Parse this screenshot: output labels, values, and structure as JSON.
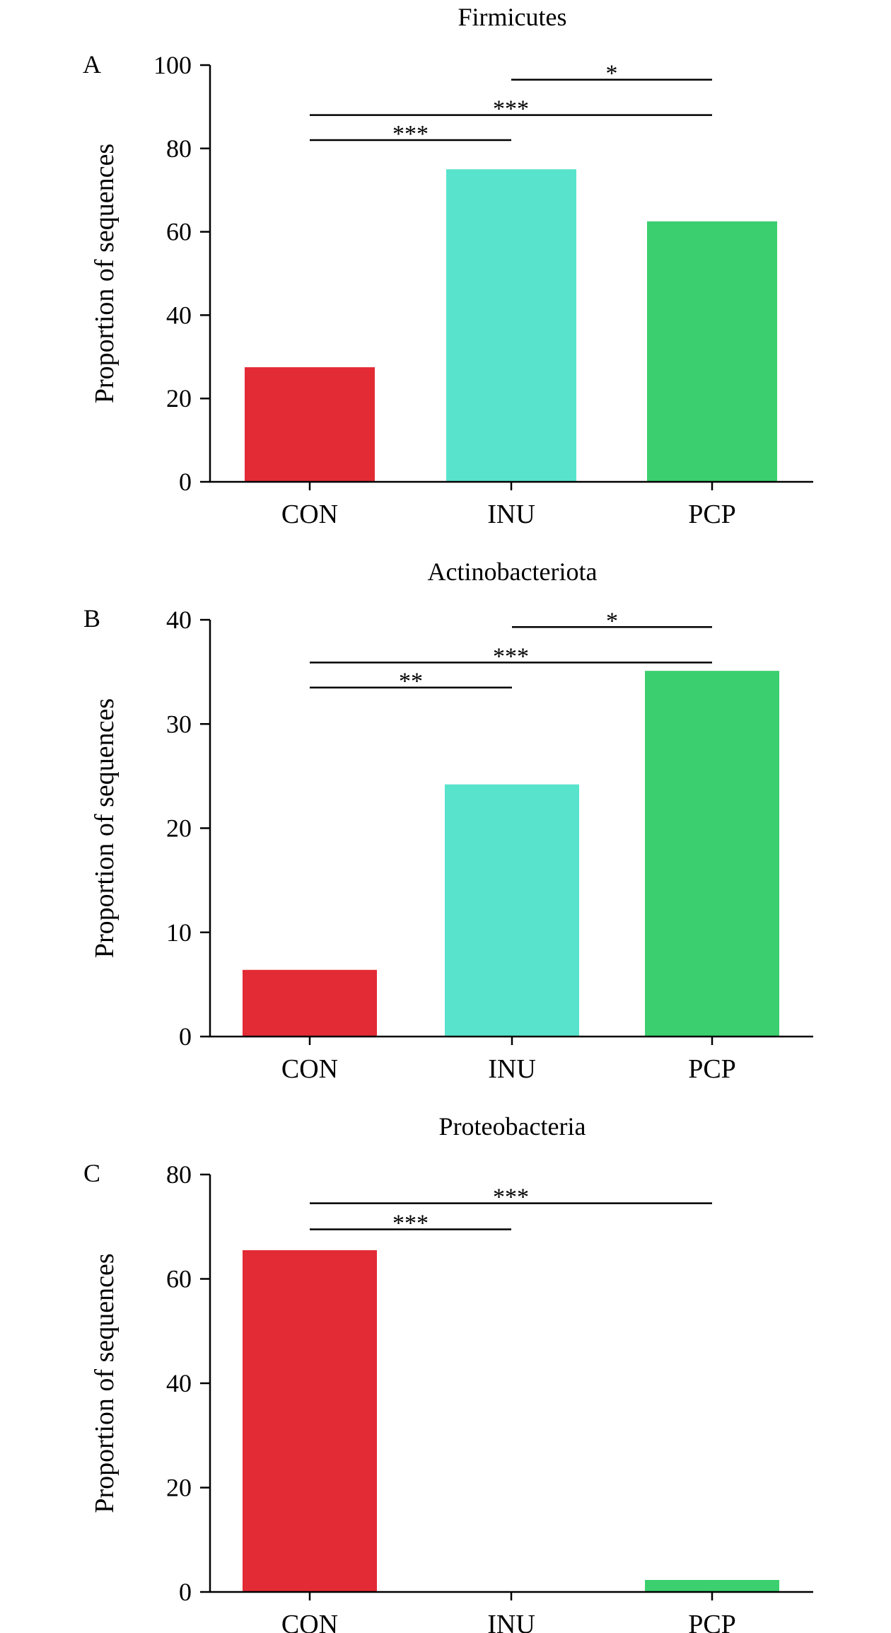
{
  "chart_data": [
    {
      "type": "bar",
      "panel": "A",
      "title": "Firmicutes",
      "ylabel": "Proportion of sequences",
      "categories": [
        "CON",
        "INU",
        "PCP"
      ],
      "values": [
        27.5,
        75,
        62.5
      ],
      "ylim": [
        0,
        100
      ],
      "yticks": [
        0,
        20,
        40,
        60,
        80,
        100
      ],
      "colors": [
        "#e32b35",
        "#58e3cc",
        "#3bcf6f"
      ],
      "significance": [
        {
          "from": "INU",
          "to": "PCP",
          "label": "*",
          "level": 96.5
        },
        {
          "from": "CON",
          "to": "PCP",
          "label": "***",
          "level": 88
        },
        {
          "from": "CON",
          "to": "INU",
          "label": "***",
          "level": 82
        }
      ]
    },
    {
      "type": "bar",
      "panel": "B",
      "title": "Actinobacteriota",
      "ylabel": "Proportion of sequences",
      "categories": [
        "CON",
        "INU",
        "PCP"
      ],
      "values": [
        6.4,
        24.2,
        35.1
      ],
      "ylim": [
        0,
        40
      ],
      "yticks": [
        0,
        10,
        20,
        30,
        40
      ],
      "colors": [
        "#e32b35",
        "#58e3cc",
        "#3bcf6f"
      ],
      "significance": [
        {
          "from": "INU",
          "to": "PCP",
          "label": "*",
          "level": 39.3
        },
        {
          "from": "CON",
          "to": "PCP",
          "label": "***",
          "level": 35.9
        },
        {
          "from": "CON",
          "to": "INU",
          "label": "**",
          "level": 33.5
        }
      ]
    },
    {
      "type": "bar",
      "panel": "C",
      "title": "Proteobacteria",
      "ylabel": "Proportion of sequences",
      "categories": [
        "CON",
        "INU",
        "PCP"
      ],
      "values": [
        65.5,
        0.1,
        2.3
      ],
      "ylim": [
        0,
        80
      ],
      "yticks": [
        0,
        20,
        40,
        60,
        80
      ],
      "colors": [
        "#e32b35",
        "#58e3cc",
        "#3bcf6f"
      ],
      "significance": [
        {
          "from": "CON",
          "to": "PCP",
          "label": "***",
          "level": 74.5
        },
        {
          "from": "CON",
          "to": "INU",
          "label": "***",
          "level": 69.5
        }
      ]
    }
  ]
}
